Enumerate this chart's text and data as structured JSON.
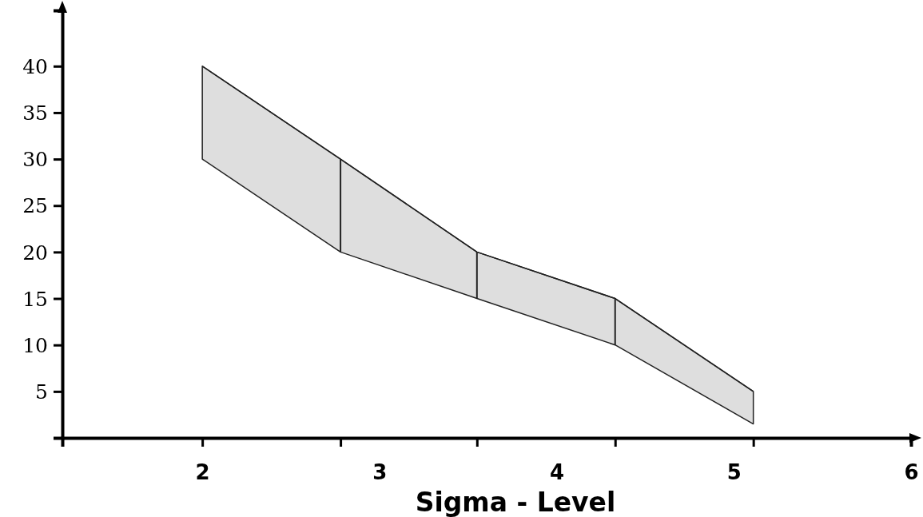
{
  "chart_data": {
    "type": "line",
    "xlabel": "Sigma - Level",
    "x": [
      2,
      2.78,
      3.55,
      4.33,
      5.11
    ],
    "series": [
      {
        "color": "#222222",
        "values": [
          40,
          30,
          20,
          15,
          5
        ],
        "upper": [
          40,
          30,
          20,
          15,
          5
        ],
        "lower": [
          30,
          20,
          15,
          10,
          1.5
        ],
        "errors": [
          null,
          [
            20,
            30
          ],
          [
            15,
            20
          ],
          [
            10,
            15
          ],
          null
        ]
      }
    ],
    "xlim": [
      1.21,
      6
    ],
    "xticks": [
      2,
      {
        "value": 2.78,
        "label": null
      },
      3,
      {
        "value": 3.55,
        "label": null
      },
      4,
      {
        "value": 4.33,
        "label": null
      },
      5,
      {
        "value": 5.11,
        "label": null
      },
      6
    ],
    "ylim": [
      0,
      46
    ],
    "yticks": [
      5,
      10,
      15,
      20,
      25,
      30,
      35,
      40
    ],
    "grid": false,
    "legend": false,
    "marker": "none"
  }
}
